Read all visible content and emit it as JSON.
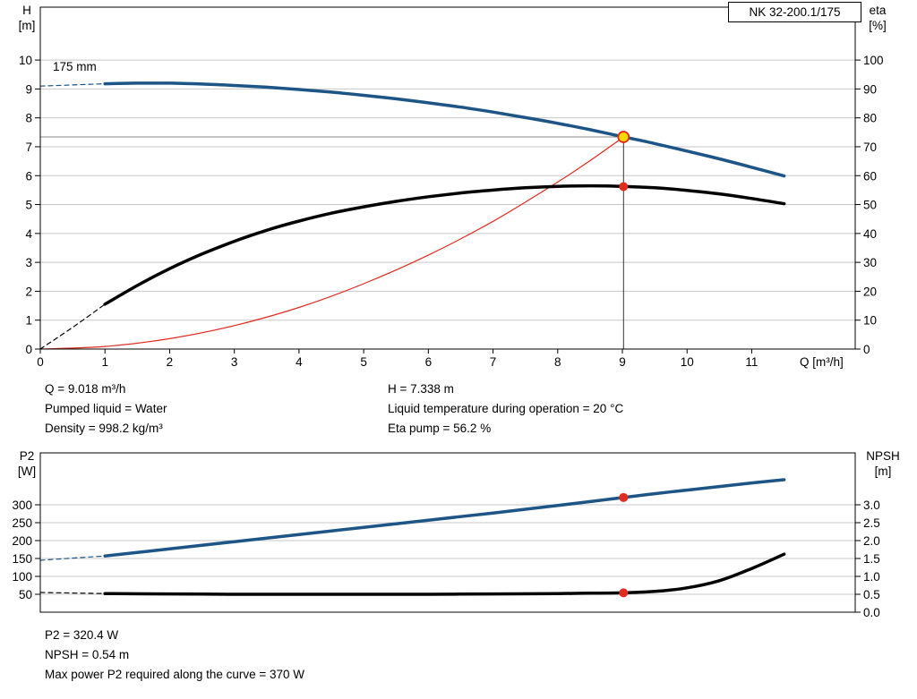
{
  "info_panel": {
    "left": [
      "Q = 9.018 m³/h",
      "Pumped liquid = Water",
      "Density = 998.2 kg/m³"
    ],
    "right": [
      "H = 7.338 m",
      "Liquid temperature during operation = 20 °C",
      "Eta pump = 56.2 %"
    ]
  },
  "footer_panel": {
    "lines": [
      "P2 = 320.4 W",
      "NPSH = 0.54 m",
      "Max power P2 required along the curve = 370 W"
    ]
  },
  "chart_data": [
    {
      "id": "qh-eta-chart",
      "type": "line",
      "title": "NK 32-200.1/175",
      "xlabel": "Q [m³/h]",
      "xlim": [
        0,
        12.6
      ],
      "x_ticks": [
        0,
        1,
        2,
        3,
        4,
        5,
        6,
        7,
        8,
        9,
        10,
        11
      ],
      "grid": true,
      "grid_color": "#c8c8c8",
      "left_axis": {
        "title": "H",
        "unit": "[m]",
        "lim": [
          0,
          11.83
        ],
        "ticks": [
          0,
          1,
          2,
          3,
          4,
          5,
          6,
          7,
          8,
          9,
          10
        ]
      },
      "right_axis": {
        "title": "eta",
        "unit": "[%]",
        "lim": [
          0,
          118.3
        ],
        "ticks": [
          0,
          10,
          20,
          30,
          40,
          50,
          60,
          70,
          80,
          90,
          100
        ]
      },
      "series": [
        {
          "name": "head-curve",
          "label": "175 mm",
          "axis": "left",
          "color": "#1c5586",
          "width": 3.5,
          "x": [
            1,
            1.5,
            2,
            2.5,
            3,
            3.5,
            4,
            4.5,
            5,
            5.5,
            6,
            6.5,
            7,
            7.5,
            8,
            8.5,
            9,
            9.5,
            10,
            10.5,
            11,
            11.5
          ],
          "y": [
            9.18,
            9.2,
            9.2,
            9.17,
            9.12,
            9.06,
            8.98,
            8.89,
            8.78,
            8.66,
            8.52,
            8.37,
            8.2,
            8.01,
            7.81,
            7.59,
            7.35,
            7.11,
            6.85,
            6.58,
            6.29,
            5.99
          ]
        },
        {
          "name": "head-curve-extension",
          "axis": "left",
          "color": "#1c5586",
          "width": 1.2,
          "dash": "5 4",
          "x": [
            0,
            1
          ],
          "y": [
            9.1,
            9.18
          ]
        },
        {
          "name": "system-curve",
          "axis": "left",
          "color": "#e02b20",
          "width": 1.2,
          "x": [
            0,
            1,
            2,
            3,
            4,
            5,
            6,
            7,
            8,
            8.5,
            9.018
          ],
          "y": [
            0,
            0.09,
            0.36,
            0.81,
            1.44,
            2.26,
            3.25,
            4.42,
            5.78,
            6.52,
            7.338
          ]
        },
        {
          "name": "eta-curve",
          "axis": "right",
          "color": "#000000",
          "width": 3.5,
          "x": [
            1,
            1.5,
            2,
            2.5,
            3,
            3.5,
            4,
            4.5,
            5,
            5.5,
            6,
            6.5,
            7,
            7.5,
            8,
            8.5,
            9,
            9.5,
            10,
            10.5,
            11,
            11.5
          ],
          "y": [
            15.5,
            22,
            27.8,
            32.9,
            37.3,
            41.1,
            44.3,
            47,
            49.2,
            51.1,
            52.7,
            54,
            55,
            55.8,
            56.3,
            56.5,
            56.3,
            55.8,
            54.9,
            53.7,
            52.1,
            50.3
          ]
        },
        {
          "name": "eta-curve-extension",
          "axis": "right",
          "color": "#000000",
          "width": 1.2,
          "dash": "5 4",
          "x": [
            0,
            0.5,
            1
          ],
          "y": [
            0,
            7.5,
            15.5
          ]
        }
      ],
      "ref_lines": [
        {
          "name": "duty-horizontal-line",
          "axis": "left",
          "x1": 0,
          "y1": 7.338,
          "x2": 9.018,
          "y2": 7.338,
          "color": "#8a8a8a",
          "width": 1
        },
        {
          "name": "duty-vertical-line",
          "axis": "left",
          "x1": 9.018,
          "y1": 0,
          "x2": 9.018,
          "y2": 7.338,
          "color": "#333333",
          "width": 1
        }
      ],
      "markers": [
        {
          "name": "duty-point",
          "axis": "left",
          "x": 9.018,
          "y": 7.338,
          "r": 6,
          "fill": "#ffd800",
          "stroke": "#e02b20",
          "stroke_width": 1.8
        },
        {
          "name": "eta-duty-point",
          "axis": "right",
          "x": 9.018,
          "y": 56.2,
          "r": 5,
          "fill": "#e02b20"
        }
      ],
      "duty_point": {
        "Q": 9.018,
        "H": 7.338,
        "eta": 56.2
      }
    },
    {
      "id": "p2-npsh-chart",
      "type": "line",
      "title": "",
      "xlabel": "",
      "xlim": [
        0,
        12.6
      ],
      "x_ticks": [],
      "grid": true,
      "grid_color": "#c8c8c8",
      "left_axis": {
        "title": "P2",
        "unit": "[W]",
        "lim": [
          0,
          445
        ],
        "ticks": [
          50,
          100,
          150,
          200,
          250,
          300
        ]
      },
      "right_axis": {
        "title": "NPSH",
        "unit": "[m]",
        "lim": [
          0,
          4.45
        ],
        "ticks": [
          0,
          0.5,
          1,
          1.5,
          2,
          2.5,
          3
        ],
        "tick_labels": [
          "0.0",
          "0.5",
          "1.0",
          "1.5",
          "2.0",
          "2.5",
          "3.0"
        ]
      },
      "series": [
        {
          "name": "p2-curve",
          "axis": "left",
          "color": "#1c5586",
          "width": 3.5,
          "x": [
            1,
            2,
            3,
            4,
            5,
            6,
            7,
            8,
            9,
            9.5,
            10,
            10.5,
            11,
            11.5
          ],
          "y": [
            157,
            177,
            197,
            217,
            237,
            257,
            277,
            298,
            320,
            331,
            341,
            351,
            361,
            370
          ]
        },
        {
          "name": "p2-curve-extension",
          "axis": "left",
          "color": "#1c5586",
          "width": 1.2,
          "dash": "5 4",
          "x": [
            0,
            1
          ],
          "y": [
            145,
            157
          ]
        },
        {
          "name": "npsh-curve",
          "axis": "right",
          "color": "#000000",
          "width": 3.5,
          "x": [
            1,
            2,
            3,
            4,
            5,
            6,
            7,
            8,
            8.5,
            9,
            9.5,
            10,
            10.5,
            11,
            11.5
          ],
          "y": [
            0.52,
            0.51,
            0.5,
            0.5,
            0.5,
            0.5,
            0.51,
            0.52,
            0.53,
            0.54,
            0.58,
            0.68,
            0.88,
            1.22,
            1.62
          ]
        },
        {
          "name": "npsh-curve-extension",
          "axis": "right",
          "color": "#000000",
          "width": 1.2,
          "dash": "5 4",
          "x": [
            0,
            1
          ],
          "y": [
            0.55,
            0.52
          ]
        }
      ],
      "ref_lines": [],
      "markers": [
        {
          "name": "p2-duty-point",
          "axis": "left",
          "x": 9.018,
          "y": 320.4,
          "r": 5,
          "fill": "#e02b20"
        },
        {
          "name": "npsh-duty-point",
          "axis": "right",
          "x": 9.018,
          "y": 0.54,
          "r": 5,
          "fill": "#e02b20"
        }
      ],
      "duty_point": {
        "Q": 9.018,
        "P2": 320.4,
        "NPSH": 0.54
      }
    }
  ]
}
